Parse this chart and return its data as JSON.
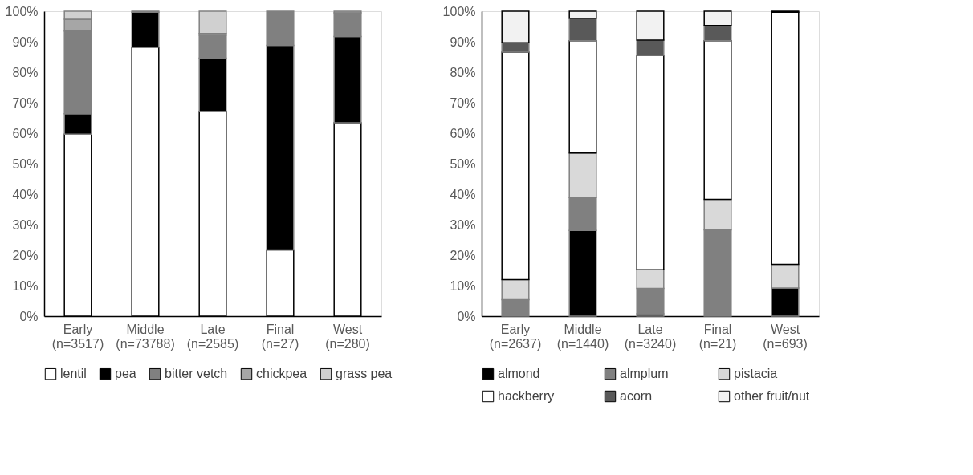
{
  "chart_data": [
    {
      "type": "bar",
      "stacked": true,
      "categories": [
        "Early\n(n=3517)",
        "Middle\n(n=73788)",
        "Late\n(n=2585)",
        "Final\n(n=27)",
        "West\n(n=280)"
      ],
      "series": [
        {
          "name": "lentil",
          "color": "#ffffff",
          "values": [
            59.7,
            88.2,
            67.2,
            21.7,
            63.4
          ]
        },
        {
          "name": "pea",
          "color": "#000000",
          "values": [
            6.7,
            11.5,
            17.4,
            67.1,
            28.3
          ]
        },
        {
          "name": "bitter vetch",
          "color": "#808080",
          "values": [
            27.1,
            0.3,
            7.6,
            11.2,
            7.8
          ]
        },
        {
          "name": "chickpea",
          "color": "#a6a6a6",
          "values": [
            3.9,
            0,
            0.5,
            0,
            0.5
          ]
        },
        {
          "name": "grass pea",
          "color": "#d0d0d0",
          "values": [
            2.6,
            0,
            7.3,
            0,
            0
          ]
        }
      ],
      "ylim": [
        0,
        100
      ],
      "yticks": [
        {
          "value": 0,
          "label": "0%"
        },
        {
          "value": 10,
          "label": "10%"
        },
        {
          "value": 20,
          "label": "20%"
        },
        {
          "value": 30,
          "label": "30%"
        },
        {
          "value": 40,
          "label": "40%"
        },
        {
          "value": 50,
          "label": "50%"
        },
        {
          "value": 60,
          "label": "60%"
        },
        {
          "value": 70,
          "label": "70%"
        },
        {
          "value": 80,
          "label": "80%"
        },
        {
          "value": 90,
          "label": "90%"
        },
        {
          "value": 100,
          "label": "100%"
        }
      ],
      "grid": false,
      "legend": "bottom"
    },
    {
      "type": "bar",
      "stacked": true,
      "categories": [
        "Early\n(n=2637)",
        "Middle\n(n=1440)",
        "Late\n(n=3240)",
        "Final\n(n=21)",
        "West\n(n=693)"
      ],
      "series": [
        {
          "name": "almond",
          "color": "#000000",
          "values": [
            0,
            28.1,
            0.8,
            0,
            9.2
          ]
        },
        {
          "name": "almplum",
          "color": "#808080",
          "values": [
            5.4,
            10.8,
            8.3,
            28.3,
            0
          ]
        },
        {
          "name": "pistacia",
          "color": "#d9d9d9",
          "values": [
            6.6,
            14.6,
            6.1,
            10.0,
            7.8
          ]
        },
        {
          "name": "hackberry",
          "color": "#ffffff",
          "values": [
            74.6,
            36.8,
            70.3,
            52.0,
            82.7
          ]
        },
        {
          "name": "acorn",
          "color": "#595959",
          "values": [
            3.1,
            7.4,
            5.0,
            5.0,
            0
          ]
        },
        {
          "name": "other fruit/nut",
          "color": "#f2f2f2",
          "values": [
            10.3,
            2.3,
            9.5,
            4.7,
            0.3
          ]
        }
      ],
      "ylim": [
        0,
        100
      ],
      "yticks": [
        {
          "value": 0,
          "label": "0%"
        },
        {
          "value": 10,
          "label": "10%"
        },
        {
          "value": 20,
          "label": "20%"
        },
        {
          "value": 30,
          "label": "30%"
        },
        {
          "value": 40,
          "label": "40%"
        },
        {
          "value": 50,
          "label": "50%"
        },
        {
          "value": 60,
          "label": "60%"
        },
        {
          "value": 70,
          "label": "70%"
        },
        {
          "value": 80,
          "label": "80%"
        },
        {
          "value": 90,
          "label": "90%"
        },
        {
          "value": 100,
          "label": "100%"
        }
      ],
      "grid": false,
      "legend": "bottom"
    }
  ]
}
